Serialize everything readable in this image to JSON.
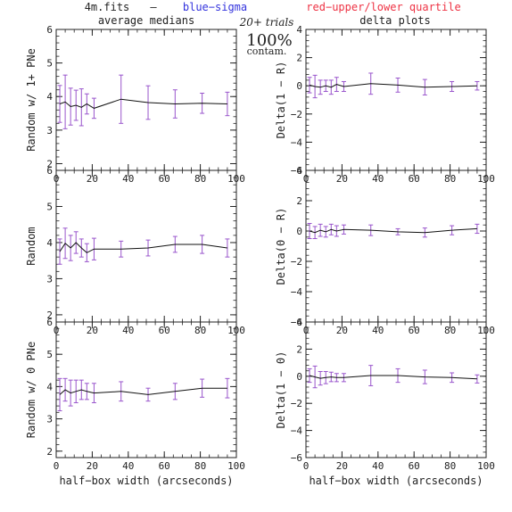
{
  "header": {
    "file": "4m.fits",
    "dash": "—",
    "blue": "blue−sigma",
    "red": "red−upper/lower quartile",
    "trials": "20+ trials",
    "contam_pct": "100%",
    "contam_word": "contam.",
    "left_title": "average medians",
    "right_title": "delta plots",
    "colors": {
      "blue": "#3333dd",
      "red": "#ee3344",
      "line": "#111111",
      "errorbar": "#9955cc"
    }
  },
  "chart_data": [
    {
      "type": "line",
      "ylabel": "Random w/ 1+ PNe",
      "xlim": [
        0,
        100
      ],
      "ylim": [
        1.8,
        6.0
      ],
      "yticks": [
        2,
        3,
        4,
        5,
        6
      ],
      "xticks": [
        0,
        20,
        40,
        60,
        80,
        100
      ],
      "xticks_shown": [
        0,
        20,
        40,
        60,
        80,
        100
      ],
      "xlabel": "",
      "x": [
        2,
        5,
        8,
        11,
        14,
        17,
        21,
        36,
        51,
        66,
        81,
        95
      ],
      "y": [
        3.78,
        3.84,
        3.7,
        3.74,
        3.68,
        3.78,
        3.65,
        3.92,
        3.82,
        3.78,
        3.8,
        3.78
      ],
      "err": [
        0.55,
        0.8,
        0.55,
        0.45,
        0.55,
        0.3,
        0.3,
        0.72,
        0.5,
        0.42,
        0.3,
        0.35
      ]
    },
    {
      "type": "line",
      "ylabel": "Delta(1 − R)",
      "xlim": [
        0,
        100
      ],
      "ylim": [
        -6,
        4
      ],
      "yticks": [
        -6,
        -4,
        -2,
        0,
        2,
        4
      ],
      "xticks": [
        0,
        20,
        40,
        60,
        80,
        100
      ],
      "xticks_shown": [
        0,
        20,
        40,
        60,
        80,
        100
      ],
      "xlabel": "",
      "x": [
        2,
        5,
        8,
        11,
        14,
        17,
        21,
        36,
        51,
        66,
        81,
        95
      ],
      "y": [
        0.05,
        -0.05,
        -0.1,
        0.0,
        -0.1,
        0.1,
        -0.05,
        0.15,
        0.05,
        -0.1,
        -0.05,
        0.0
      ],
      "err": [
        0.55,
        0.8,
        0.5,
        0.4,
        0.5,
        0.5,
        0.35,
        0.75,
        0.5,
        0.55,
        0.35,
        0.3
      ]
    },
    {
      "type": "line",
      "ylabel": "Random",
      "xlim": [
        0,
        100
      ],
      "ylim": [
        1.8,
        6.0
      ],
      "yticks": [
        2,
        3,
        4,
        5,
        6
      ],
      "xticks": [
        0,
        20,
        40,
        60,
        80,
        100
      ],
      "xticks_shown": [
        0,
        20,
        40,
        60,
        80,
        100
      ],
      "xlabel": "",
      "x": [
        2,
        5,
        8,
        11,
        14,
        17,
        21,
        36,
        51,
        66,
        81,
        95
      ],
      "y": [
        3.75,
        3.98,
        3.85,
        4.0,
        3.85,
        3.72,
        3.82,
        3.82,
        3.85,
        3.95,
        3.95,
        3.85
      ],
      "err": [
        0.35,
        0.42,
        0.35,
        0.3,
        0.25,
        0.25,
        0.3,
        0.22,
        0.22,
        0.22,
        0.25,
        0.25
      ]
    },
    {
      "type": "line",
      "ylabel": "Delta(0 − R)",
      "xlim": [
        0,
        100
      ],
      "ylim": [
        -6,
        4
      ],
      "yticks": [
        -6,
        -4,
        -2,
        0,
        2,
        4
      ],
      "xticks": [
        0,
        20,
        40,
        60,
        80,
        100
      ],
      "xticks_shown": [
        0,
        20,
        40,
        60,
        80,
        100
      ],
      "xlabel": "",
      "x": [
        2,
        5,
        8,
        11,
        14,
        17,
        21,
        36,
        51,
        66,
        81,
        95
      ],
      "y": [
        0.0,
        -0.1,
        0.05,
        -0.05,
        0.1,
        0.0,
        0.1,
        0.05,
        -0.05,
        -0.1,
        0.05,
        0.15
      ],
      "err": [
        0.5,
        0.4,
        0.4,
        0.35,
        0.35,
        0.35,
        0.3,
        0.35,
        0.2,
        0.3,
        0.3,
        0.3
      ]
    },
    {
      "type": "line",
      "ylabel": "Random w/ 0 PNe",
      "xlim": [
        0,
        100
      ],
      "ylim": [
        1.8,
        6.0
      ],
      "yticks": [
        2,
        3,
        4,
        5,
        6
      ],
      "xticks": [
        0,
        20,
        40,
        60,
        80,
        100
      ],
      "xticks_shown": [
        0,
        20,
        40,
        60,
        80,
        100
      ],
      "xlabel": "half−box width (arcseconds)",
      "x": [
        2,
        5,
        8,
        11,
        14,
        17,
        21,
        36,
        51,
        66,
        81,
        95
      ],
      "y": [
        3.75,
        3.9,
        3.8,
        3.85,
        3.9,
        3.85,
        3.8,
        3.85,
        3.75,
        3.85,
        3.95,
        3.95
      ],
      "err": [
        0.5,
        0.35,
        0.4,
        0.35,
        0.3,
        0.25,
        0.3,
        0.3,
        0.2,
        0.25,
        0.28,
        0.3
      ]
    },
    {
      "type": "line",
      "ylabel": "Delta(1 − 0)",
      "xlim": [
        0,
        100
      ],
      "ylim": [
        -6,
        4
      ],
      "yticks": [
        -6,
        -4,
        -2,
        0,
        2,
        4
      ],
      "xticks": [
        0,
        20,
        40,
        60,
        80,
        100
      ],
      "xticks_shown": [
        0,
        20,
        40,
        60,
        80,
        100
      ],
      "xlabel": "half−box width (arcseconds)",
      "x": [
        2,
        5,
        8,
        11,
        14,
        17,
        21,
        36,
        51,
        66,
        81,
        95
      ],
      "y": [
        0.05,
        -0.05,
        -0.15,
        -0.1,
        -0.05,
        -0.1,
        -0.1,
        0.05,
        0.05,
        -0.05,
        -0.1,
        -0.2
      ],
      "err": [
        0.5,
        0.8,
        0.5,
        0.45,
        0.35,
        0.3,
        0.3,
        0.75,
        0.5,
        0.5,
        0.35,
        0.3
      ]
    }
  ]
}
